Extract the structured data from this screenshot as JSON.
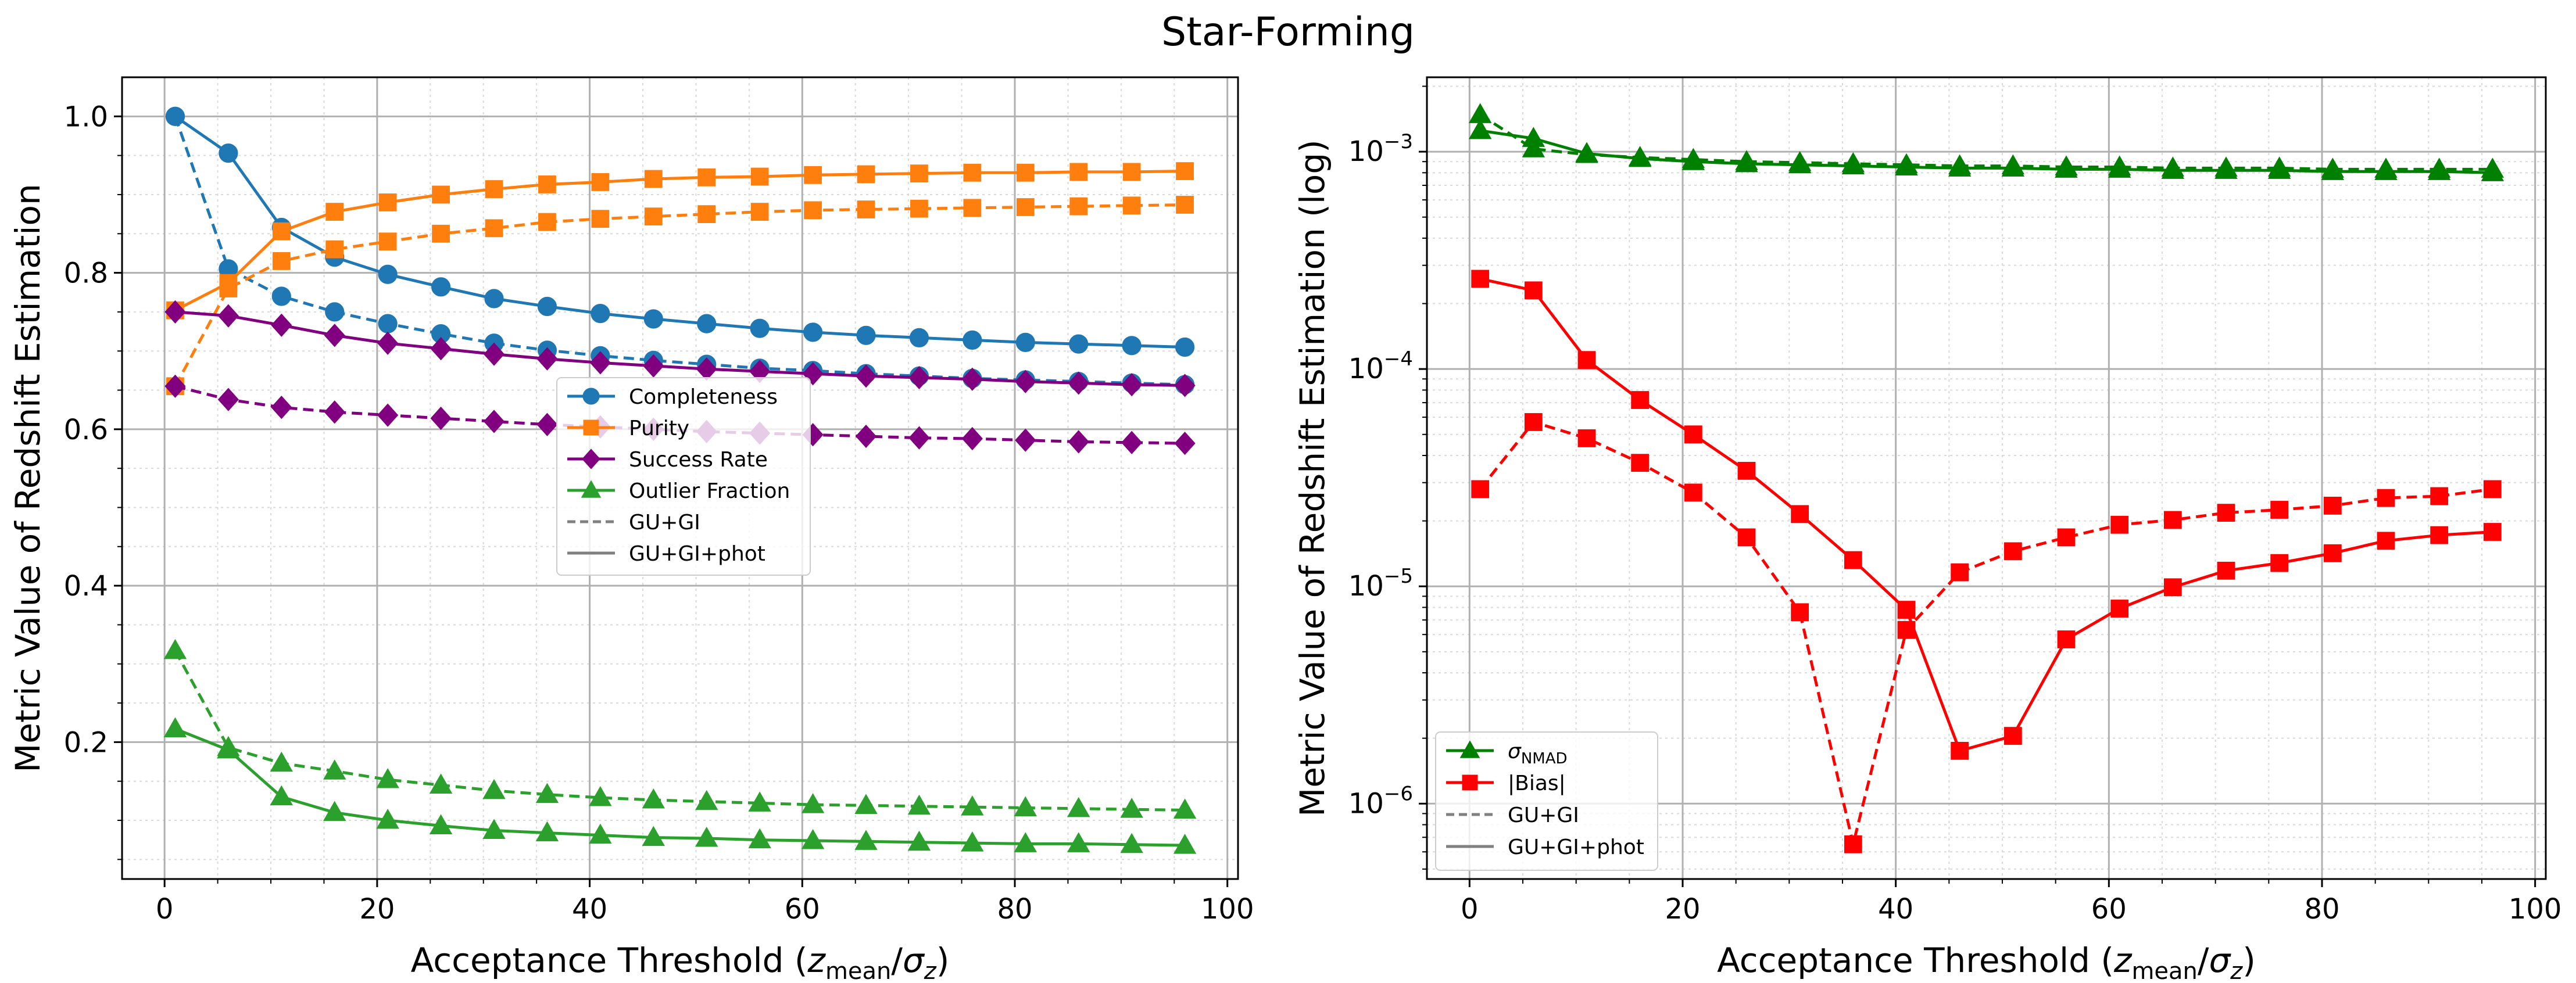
{
  "figure_title": "Star-Forming",
  "chart_data": [
    {
      "type": "line",
      "xlabel": "Acceptance Threshold (z_mean/σ_z)",
      "xlabel_main": "Acceptance Threshold (",
      "xlabel_z": "z",
      "xlabel_zsub": "mean",
      "xlabel_slash": "/",
      "xlabel_sigma": "σ",
      "xlabel_sigmasub": "z",
      "xlabel_close": ")",
      "ylabel": "Metric Value of Redshift Estimation",
      "xlim": [
        -4,
        101
      ],
      "ylim": [
        0.025,
        1.05
      ],
      "yscale": "linear",
      "grid": true,
      "xticks": [
        0,
        20,
        40,
        60,
        80,
        100
      ],
      "xtick_labels": [
        "0",
        "20",
        "40",
        "60",
        "80",
        "100"
      ],
      "yticks": [
        0.2,
        0.4,
        0.6,
        0.8,
        1.0
      ],
      "ytick_labels": [
        "0.2",
        "0.4",
        "0.6",
        "0.8",
        "1.0"
      ],
      "legend_position": "center",
      "legend": [
        {
          "label": "Completeness",
          "color": "#1f77b4",
          "marker": "circle",
          "style": "solid"
        },
        {
          "label": "Purity",
          "color": "#ff7f0e",
          "marker": "square",
          "style": "solid"
        },
        {
          "label": "Success Rate",
          "color": "#800080",
          "marker": "diamond",
          "style": "solid"
        },
        {
          "label": "Outlier Fraction",
          "color": "#2ca02c",
          "marker": "triangle",
          "style": "solid"
        },
        {
          "label": "GU+GI",
          "color": "#808080",
          "marker": "none",
          "style": "dashed"
        },
        {
          "label": "GU+GI+phot",
          "color": "#808080",
          "marker": "none",
          "style": "solid"
        }
      ],
      "x": [
        1,
        6,
        11,
        16,
        21,
        26,
        31,
        36,
        41,
        46,
        51,
        56,
        61,
        66,
        71,
        76,
        81,
        86,
        91,
        96
      ],
      "series": [
        {
          "name": "Completeness",
          "variant": "GU+GI+phot",
          "color": "#1f77b4",
          "marker": "circle",
          "dash": false,
          "values": [
            1.0,
            0.953,
            0.858,
            0.82,
            0.798,
            0.782,
            0.767,
            0.757,
            0.748,
            0.741,
            0.735,
            0.729,
            0.724,
            0.72,
            0.717,
            0.714,
            0.711,
            0.709,
            0.707,
            0.705
          ]
        },
        {
          "name": "Completeness",
          "variant": "GU+GI",
          "color": "#1f77b4",
          "marker": "circle",
          "dash": true,
          "values": [
            1.0,
            0.805,
            0.77,
            0.75,
            0.735,
            0.722,
            0.71,
            0.701,
            0.694,
            0.688,
            0.683,
            0.678,
            0.675,
            0.671,
            0.668,
            0.665,
            0.663,
            0.661,
            0.659,
            0.657
          ]
        },
        {
          "name": "Purity",
          "variant": "GU+GI+phot",
          "color": "#ff7f0e",
          "marker": "square",
          "dash": false,
          "values": [
            0.752,
            0.787,
            0.853,
            0.878,
            0.89,
            0.9,
            0.907,
            0.913,
            0.916,
            0.92,
            0.922,
            0.923,
            0.925,
            0.926,
            0.927,
            0.928,
            0.928,
            0.929,
            0.929,
            0.93
          ]
        },
        {
          "name": "Purity",
          "variant": "GU+GI",
          "color": "#ff7f0e",
          "marker": "square",
          "dash": true,
          "values": [
            0.655,
            0.78,
            0.815,
            0.83,
            0.84,
            0.85,
            0.857,
            0.865,
            0.869,
            0.872,
            0.875,
            0.878,
            0.88,
            0.881,
            0.882,
            0.883,
            0.884,
            0.885,
            0.886,
            0.887
          ]
        },
        {
          "name": "Success Rate",
          "variant": "GU+GI+phot",
          "color": "#800080",
          "marker": "diamond",
          "dash": false,
          "values": [
            0.75,
            0.745,
            0.733,
            0.72,
            0.71,
            0.703,
            0.696,
            0.69,
            0.685,
            0.681,
            0.677,
            0.674,
            0.671,
            0.668,
            0.666,
            0.664,
            0.661,
            0.659,
            0.657,
            0.656
          ]
        },
        {
          "name": "Success Rate",
          "variant": "GU+GI",
          "color": "#800080",
          "marker": "diamond",
          "dash": true,
          "values": [
            0.655,
            0.638,
            0.628,
            0.622,
            0.618,
            0.614,
            0.61,
            0.606,
            0.603,
            0.6,
            0.597,
            0.595,
            0.593,
            0.591,
            0.589,
            0.588,
            0.586,
            0.584,
            0.583,
            0.582
          ]
        },
        {
          "name": "Outlier Fraction",
          "variant": "GU+GI+phot",
          "color": "#2ca02c",
          "marker": "triangle",
          "dash": false,
          "values": [
            0.217,
            0.19,
            0.13,
            0.11,
            0.1,
            0.093,
            0.087,
            0.084,
            0.081,
            0.078,
            0.077,
            0.075,
            0.074,
            0.073,
            0.072,
            0.071,
            0.07,
            0.07,
            0.069,
            0.068
          ]
        },
        {
          "name": "Outlier Fraction",
          "variant": "GU+GI",
          "color": "#2ca02c",
          "marker": "triangle",
          "dash": true,
          "values": [
            0.317,
            0.193,
            0.173,
            0.163,
            0.152,
            0.145,
            0.138,
            0.133,
            0.129,
            0.126,
            0.124,
            0.122,
            0.12,
            0.119,
            0.118,
            0.117,
            0.116,
            0.115,
            0.114,
            0.113
          ]
        }
      ]
    },
    {
      "type": "line",
      "xlabel": "Acceptance Threshold (z_mean/σ_z)",
      "xlabel_main": "Acceptance Threshold (",
      "xlabel_z": "z",
      "xlabel_zsub": "mean",
      "xlabel_slash": "/",
      "xlabel_sigma": "σ",
      "xlabel_sigmasub": "z",
      "xlabel_close": ")",
      "ylabel": "Metric Value of Redshift Estimation (log)",
      "xlim": [
        -4,
        101
      ],
      "ylim": [
        4.5e-07,
        0.0022
      ],
      "yscale": "log",
      "grid": true,
      "xticks": [
        0,
        20,
        40,
        60,
        80,
        100
      ],
      "xtick_labels": [
        "0",
        "20",
        "40",
        "60",
        "80",
        "100"
      ],
      "yticks": [
        -6,
        -5,
        -4,
        -3
      ],
      "ytick_base": "10",
      "ytick_exponents": [
        "−6",
        "−5",
        "−4",
        "−3"
      ],
      "legend_position": "lower-left",
      "legend": [
        {
          "label": "σ_NMAD",
          "label_main": "σ",
          "label_sub": "NMAD",
          "color": "#008000",
          "marker": "triangle",
          "style": "solid"
        },
        {
          "label": "|Bias|",
          "color": "#ff0000",
          "marker": "square",
          "style": "solid"
        },
        {
          "label": "GU+GI",
          "color": "#808080",
          "marker": "none",
          "style": "dashed"
        },
        {
          "label": "GU+GI+phot",
          "color": "#808080",
          "marker": "none",
          "style": "solid"
        }
      ],
      "x": [
        1,
        6,
        11,
        16,
        21,
        26,
        31,
        36,
        41,
        46,
        51,
        56,
        61,
        66,
        71,
        76,
        81,
        86,
        91,
        96
      ],
      "series": [
        {
          "name": "σ_NMAD",
          "variant": "GU+GI+phot",
          "color": "#008000",
          "marker": "triangle",
          "dash": false,
          "values": [
            0.00125,
            0.00115,
            0.00098,
            0.00093,
            0.0009,
            0.00088,
            0.00087,
            0.00086,
            0.00085,
            0.00084,
            0.00084,
            0.00083,
            0.00083,
            0.00082,
            0.00082,
            0.00082,
            0.00081,
            0.00081,
            0.00081,
            0.0008
          ]
        },
        {
          "name": "σ_NMAD",
          "variant": "GU+GI",
          "color": "#008000",
          "marker": "triangle",
          "dash": true,
          "values": [
            0.00148,
            0.00103,
            0.00097,
            0.00094,
            0.00092,
            0.0009,
            0.00089,
            0.00088,
            0.00087,
            0.00086,
            0.00086,
            0.00085,
            0.00085,
            0.00084,
            0.00084,
            0.00084,
            0.00083,
            0.00083,
            0.00083,
            0.00083
          ]
        },
        {
          "name": "|Bias|",
          "variant": "GU+GI+phot",
          "color": "#ff0000",
          "marker": "square",
          "dash": false,
          "values": [
            0.00026,
            0.00023,
            0.00011,
            7.2e-05,
            5e-05,
            3.4e-05,
            2.15e-05,
            1.32e-05,
            7.8e-06,
            1.75e-06,
            2.05e-06,
            5.7e-06,
            7.9e-06,
            9.9e-06,
            1.18e-05,
            1.28e-05,
            1.42e-05,
            1.62e-05,
            1.72e-05,
            1.78e-05
          ]
        },
        {
          "name": "|Bias|",
          "variant": "GU+GI",
          "color": "#ff0000",
          "marker": "square",
          "dash": true,
          "values": [
            2.8e-05,
            5.7e-05,
            4.8e-05,
            3.7e-05,
            2.7e-05,
            1.68e-05,
            7.6e-06,
            6.5e-07,
            6.3e-06,
            1.16e-05,
            1.45e-05,
            1.68e-05,
            1.92e-05,
            2.02e-05,
            2.18e-05,
            2.25e-05,
            2.35e-05,
            2.55e-05,
            2.6e-05,
            2.8e-05
          ]
        }
      ]
    }
  ]
}
